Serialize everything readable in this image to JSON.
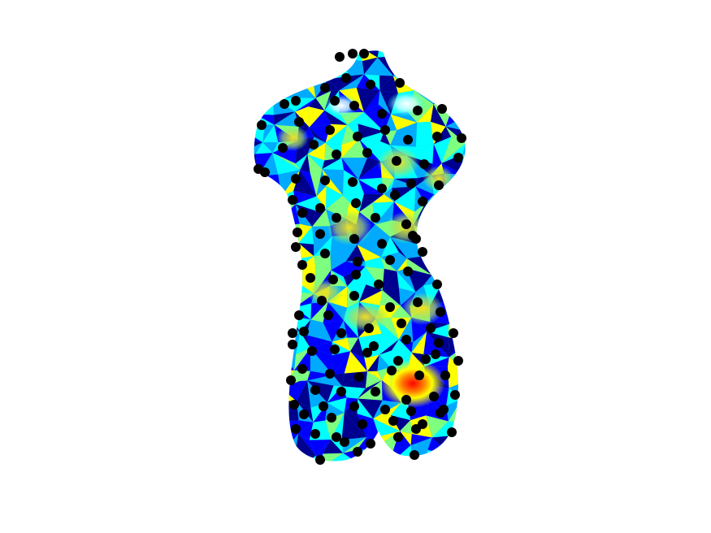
{
  "figure": {
    "type": "3d-mesh-render",
    "subject": "torso",
    "background_color": "#ffffff",
    "colormap": "jet",
    "colormap_colors": [
      "#00008f",
      "#0000ff",
      "#00aaff",
      "#00ffff",
      "#7fff7f",
      "#ffff00",
      "#ff8000",
      "#ff0000",
      "#800000"
    ],
    "marker_color": "#000000",
    "marker_count": 170
  }
}
